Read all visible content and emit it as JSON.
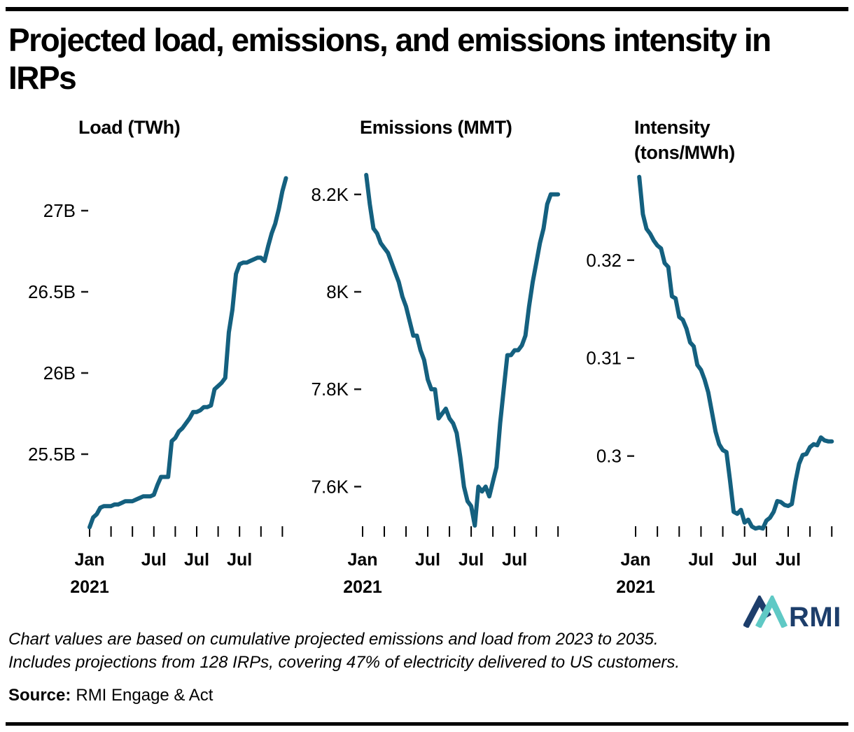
{
  "page": {
    "title_line1": "Projected load, emissions, and emissions intensity in",
    "title_line2": "IRPs",
    "footnote_line1": "Chart values are based on cumulative projected emissions and load from 2023 to 2035.",
    "footnote_line2": "Includes projections from 128 IRPs, covering 47% of electricity delivered to US customers.",
    "source_label": "Source:",
    "source_value": "RMI Engage & Act",
    "logo_text": "RMI"
  },
  "colors": {
    "line": "#14607F",
    "text": "#000000",
    "axis": "#000000",
    "logo_navy": "#1D3E6B",
    "logo_teal": "#5FC9C5"
  },
  "chart_data": [
    {
      "type": "line",
      "title": "Load (TWh)",
      "title_line2": "",
      "x_start": "2021-01",
      "x_unit": "month",
      "start_month": 0,
      "ylim": [
        25.03,
        27.22
      ],
      "yticks": [
        {
          "label": "27B",
          "value": 27
        },
        {
          "label": "26.5B",
          "value": 26.5
        },
        {
          "label": "26B",
          "value": 26
        },
        {
          "label": "25.5B",
          "value": 25.5
        }
      ],
      "xticks_months": [
        0,
        6,
        12,
        18,
        24,
        30,
        36,
        42,
        48,
        54
      ],
      "xlabels": [
        {
          "month": 0,
          "lines": [
            "Jan",
            "2021"
          ]
        },
        {
          "month": 18,
          "lines": [
            "Jul"
          ]
        },
        {
          "month": 30,
          "lines": [
            "Jul"
          ]
        },
        {
          "month": 42,
          "lines": [
            "Jul"
          ]
        }
      ],
      "values": [
        25.05,
        25.11,
        25.13,
        25.17,
        25.18,
        25.18,
        25.18,
        25.19,
        25.19,
        25.2,
        25.21,
        25.21,
        25.21,
        25.22,
        25.23,
        25.24,
        25.24,
        25.24,
        25.25,
        25.31,
        25.36,
        25.36,
        25.36,
        25.58,
        25.6,
        25.64,
        25.66,
        25.69,
        25.72,
        25.76,
        25.76,
        25.77,
        25.79,
        25.79,
        25.8,
        25.9,
        25.92,
        25.94,
        25.97,
        26.25,
        26.39,
        26.61,
        26.67,
        26.68,
        26.68,
        26.69,
        26.7,
        26.71,
        26.71,
        26.69,
        26.78,
        26.86,
        26.92,
        27.01,
        27.12,
        27.2
      ]
    },
    {
      "type": "line",
      "title": "Emissions (MMT)",
      "title_line2": "",
      "x_start": "2021-01",
      "x_unit": "month",
      "start_month": 1,
      "ylim": [
        7.51,
        8.24
      ],
      "yticks": [
        {
          "label": "8.2K",
          "value": 8.2
        },
        {
          "label": "8K",
          "value": 8.0
        },
        {
          "label": "7.8K",
          "value": 7.8
        },
        {
          "label": "7.6K",
          "value": 7.6
        }
      ],
      "xticks_months": [
        0,
        6,
        12,
        18,
        24,
        30,
        36,
        42,
        48,
        54
      ],
      "xlabels": [
        {
          "month": 0,
          "lines": [
            "Jan",
            "2021"
          ]
        },
        {
          "month": 18,
          "lines": [
            "Jul"
          ]
        },
        {
          "month": 30,
          "lines": [
            "Jul"
          ]
        },
        {
          "month": 42,
          "lines": [
            "Jul"
          ]
        }
      ],
      "values": [
        8.24,
        8.18,
        8.13,
        8.12,
        8.1,
        8.09,
        8.08,
        8.06,
        8.04,
        8.02,
        7.99,
        7.97,
        7.94,
        7.91,
        7.91,
        7.88,
        7.86,
        7.82,
        7.8,
        7.8,
        7.74,
        7.75,
        7.76,
        7.74,
        7.73,
        7.71,
        7.66,
        7.6,
        7.57,
        7.56,
        7.52,
        7.6,
        7.59,
        7.6,
        7.58,
        7.61,
        7.64,
        7.73,
        7.8,
        7.87,
        7.87,
        7.88,
        7.88,
        7.89,
        7.91,
        7.97,
        8.02,
        8.06,
        8.1,
        8.13,
        8.18,
        8.2,
        8.2,
        8.2
      ]
    },
    {
      "type": "line",
      "title": "Intensity",
      "title_line2": "(tons/MWh)",
      "x_start": "2021-01",
      "x_unit": "month",
      "start_month": 1,
      "ylim": [
        0.2924,
        0.3287
      ],
      "yticks": [
        {
          "label": "0.32",
          "value": 0.32
        },
        {
          "label": "0.31",
          "value": 0.31
        },
        {
          "label": "0.3",
          "value": 0.3
        }
      ],
      "xticks_months": [
        0,
        6,
        12,
        18,
        24,
        30,
        36,
        42,
        48,
        54
      ],
      "xlabels": [
        {
          "month": 0,
          "lines": [
            "Jan",
            "2021"
          ]
        },
        {
          "month": 18,
          "lines": [
            "Jul"
          ]
        },
        {
          "month": 30,
          "lines": [
            "Jul"
          ]
        },
        {
          "month": 42,
          "lines": [
            "Jul"
          ]
        }
      ],
      "values": [
        0.3285,
        0.3247,
        0.3232,
        0.3227,
        0.322,
        0.3215,
        0.3212,
        0.3197,
        0.3193,
        0.3163,
        0.3161,
        0.3142,
        0.3139,
        0.313,
        0.3116,
        0.3112,
        0.3093,
        0.3088,
        0.3078,
        0.3065,
        0.3045,
        0.3025,
        0.3012,
        0.3006,
        0.3004,
        0.2975,
        0.2943,
        0.2941,
        0.2945,
        0.2932,
        0.2935,
        0.2928,
        0.2926,
        0.2927,
        0.2926,
        0.2934,
        0.2937,
        0.2943,
        0.2954,
        0.2953,
        0.295,
        0.2949,
        0.2951,
        0.2974,
        0.2992,
        0.3001,
        0.3002,
        0.3009,
        0.3012,
        0.3011,
        0.3019,
        0.3016,
        0.3015,
        0.3015
      ]
    }
  ]
}
